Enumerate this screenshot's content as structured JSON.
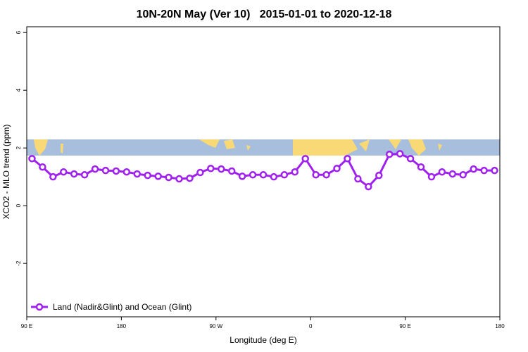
{
  "chart_data": {
    "type": "line",
    "title": "10N-20N May (Ver 10)   2015-01-01 to 2020-12-18",
    "xlabel": "Longitude (deg E)",
    "ylabel": "XCO2 - MLO trend (ppm)",
    "x": [
      95,
      105,
      115,
      125,
      135,
      145,
      155,
      165,
      175,
      185,
      195,
      205,
      215,
      225,
      235,
      245,
      255,
      265,
      275,
      285,
      295,
      305,
      315,
      325,
      335,
      345,
      355,
      365,
      375,
      385,
      395,
      405,
      415,
      425,
      435,
      445,
      455,
      465,
      475,
      485,
      495,
      505,
      515,
      525,
      535
    ],
    "series": [
      {
        "name": "Land (Nadir&Glint) and Ocean (Glint)",
        "color": "#a020f0",
        "values": [
          1.63,
          1.34,
          1.0,
          1.17,
          1.1,
          1.07,
          1.27,
          1.22,
          1.2,
          1.17,
          1.1,
          1.05,
          1.02,
          0.98,
          0.93,
          0.95,
          1.15,
          1.29,
          1.27,
          1.2,
          1.02,
          1.07,
          1.07,
          1.0,
          1.07,
          1.17,
          1.63,
          1.07,
          1.07,
          1.29,
          1.63,
          0.93,
          0.66,
          1.05,
          1.78,
          1.8,
          1.63,
          1.34,
          1.0,
          1.17,
          1.1,
          1.07,
          1.27,
          1.22,
          1.22
        ]
      }
    ],
    "xlim": [
      90,
      540
    ],
    "xticks": [
      {
        "value": 90,
        "label": "90 E"
      },
      180,
      {
        "value": 270,
        "label": "90 W"
      },
      {
        "value": 360,
        "label": "0"
      },
      {
        "value": 450,
        "label": "90 E"
      },
      {
        "value": 540,
        "label": "180"
      }
    ],
    "ylim": [
      -3.85,
      6.2
    ],
    "yticks": [
      -2,
      0,
      2,
      4,
      6
    ],
    "legend": "bottom-left"
  }
}
